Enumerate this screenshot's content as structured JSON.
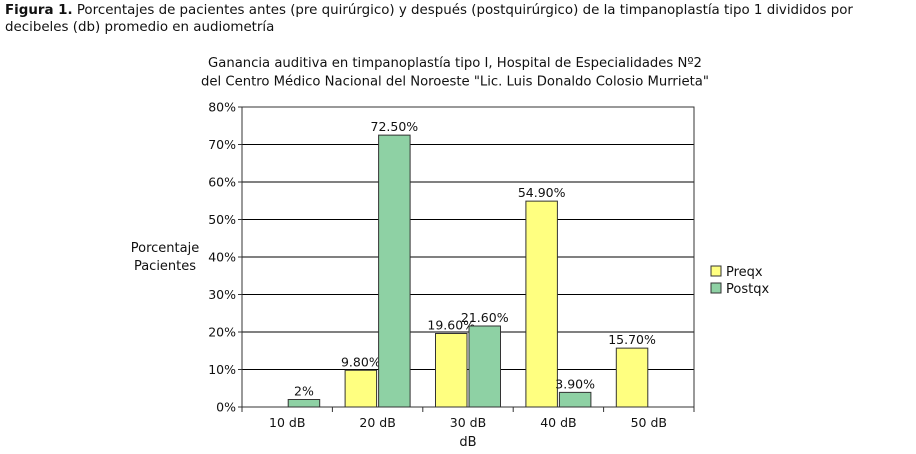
{
  "figure": {
    "label": "Figura 1.",
    "caption": "Porcentajes de pacientes antes (pre quirúrgico) y después (postquirúrgico) de la timpanoplastía tipo 1 divididos por decibeles (db) promedio en audiometría"
  },
  "colors": {
    "Preqx": "#ffff80",
    "Postqx": "#8ed1a4",
    "border": "#333333",
    "grid": "#000000"
  },
  "chart_data": {
    "type": "bar",
    "title": "Ganancia auditiva en timpanoplastía tipo I, Hospital de Especialidades Nº2 del Centro Médico Nacional del Noroeste \"Lic. Luis Donaldo Colosio Murrieta\"",
    "title_lines": [
      "Ganancia auditiva en timpanoplastía tipo I, Hospital de Especialidades Nº2",
      "del Centro Médico Nacional del Noroeste \"Lic. Luis Donaldo Colosio Murrieta\""
    ],
    "xlabel": "dB",
    "ylabel_lines": [
      "Porcentaje",
      "Pacientes"
    ],
    "categories": [
      "10 dB",
      "20 dB",
      "30 dB",
      "40 dB",
      "50 dB"
    ],
    "ylim": [
      0,
      80
    ],
    "yticks": [
      0,
      10,
      20,
      30,
      40,
      50,
      60,
      70,
      80
    ],
    "ytick_labels": [
      "0%",
      "10%",
      "20%",
      "30%",
      "40%",
      "50%",
      "60%",
      "70%",
      "80%"
    ],
    "grid": true,
    "legend_position": "right",
    "series": [
      {
        "name": "Preqx",
        "values": [
          null,
          9.8,
          19.6,
          54.9,
          15.7
        ],
        "labels": [
          null,
          "9.80%",
          "19.60%",
          "54.90%",
          "15.70%"
        ]
      },
      {
        "name": "Postqx",
        "values": [
          2,
          72.5,
          21.6,
          3.9,
          null
        ],
        "labels": [
          "2%",
          "72.50%",
          "21.60%",
          "3.90%",
          null
        ]
      }
    ]
  }
}
